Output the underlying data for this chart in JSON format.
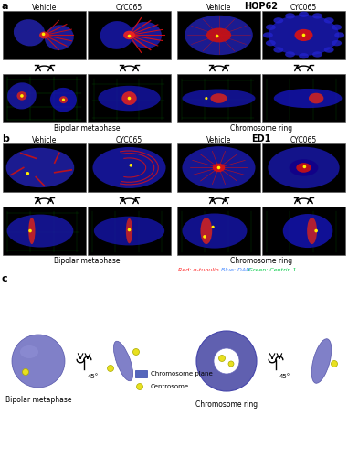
{
  "title_a": "HOP62",
  "title_b": "ED1",
  "label_a": "a",
  "label_b": "b",
  "label_c": "c",
  "vehicle": "Vehicle",
  "cyc065": "CYC065",
  "bipolar": "Bipolar metaphase",
  "chrom_ring": "Chromosome ring",
  "legend_chrom": "Chromosome plane",
  "legend_centro": "Centrosome",
  "angle_text": "45°",
  "blue_color": "#8080c8",
  "blue_dark_color": "#6060b0",
  "yellow_color": "#e8e020",
  "bg_color": "#ffffff",
  "panel_bg": "#000000",
  "red_text": "Red: α-tubulin",
  "blue_text": "Blue: DAPI",
  "green_text": "Green: Centrin 1",
  "red_col": "#ff2020",
  "blue_col": "#4488ff",
  "green_col": "#00cc44"
}
